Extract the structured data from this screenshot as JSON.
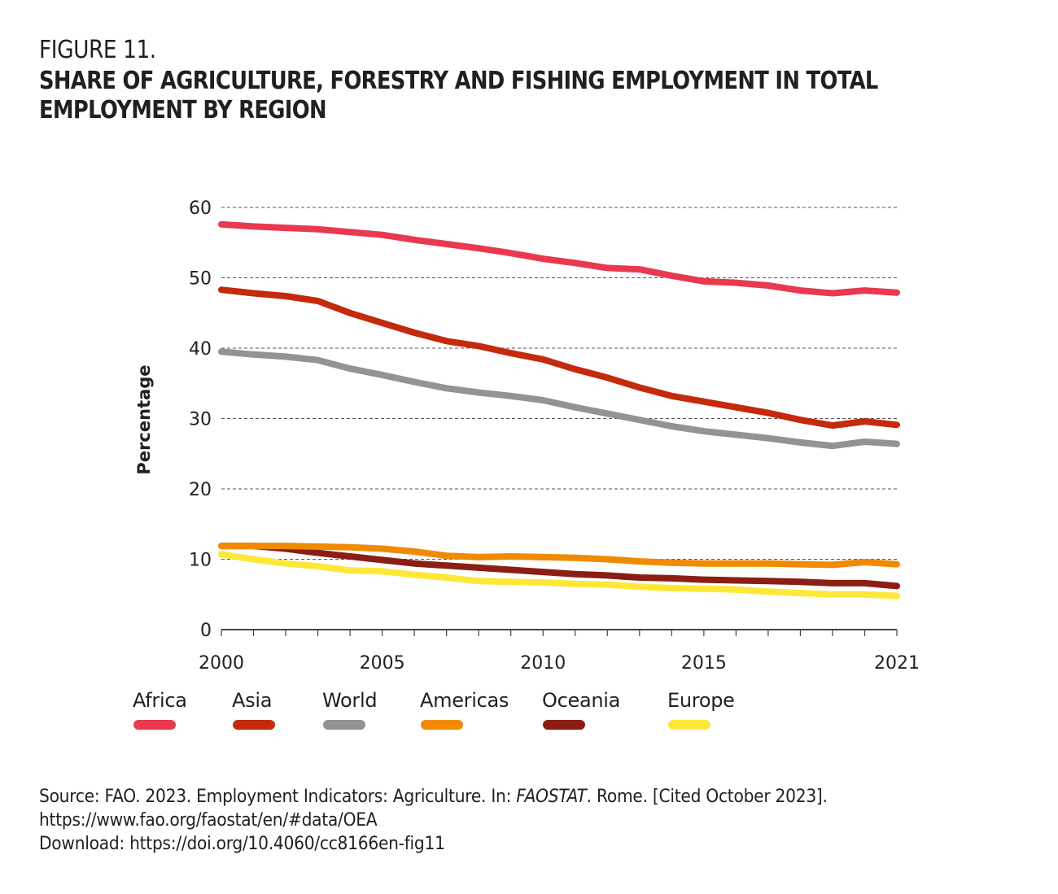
{
  "figure": {
    "label": "FIGURE 11.",
    "title": "SHARE OF AGRICULTURE, FORESTRY AND FISHING EMPLOYMENT IN TOTAL EMPLOYMENT BY REGION"
  },
  "source": {
    "prefix": "Source: FAO. 2023. Employment Indicators: Agriculture. In: ",
    "publication": "FAOSTAT",
    "suffix": ". Rome. [Cited October 2023].",
    "url": "https://www.fao.org/faostat/en/#data/OEA",
    "download": "Download: https://doi.org/10.4060/cc8166en-fig11"
  },
  "chart_data": {
    "type": "line",
    "title": "Share of agriculture, forestry and fishing employment in total employment by region",
    "xlabel": "",
    "ylabel": "Percentage",
    "xlim": [
      2000,
      2021
    ],
    "ylim": [
      0,
      60
    ],
    "xticks": [
      2000,
      2005,
      2010,
      2015,
      2021
    ],
    "yticks": [
      0,
      10,
      20,
      30,
      40,
      50,
      60
    ],
    "grid": "horizontal dashed",
    "legend_position": "bottom",
    "x": [
      2000,
      2001,
      2002,
      2003,
      2004,
      2005,
      2006,
      2007,
      2008,
      2009,
      2010,
      2011,
      2012,
      2013,
      2014,
      2015,
      2016,
      2017,
      2018,
      2019,
      2020,
      2021
    ],
    "series": [
      {
        "name": "Africa",
        "color": "#e8394f",
        "values": [
          57.6,
          57.3,
          57.1,
          56.9,
          56.5,
          56.1,
          55.4,
          54.8,
          54.2,
          53.5,
          52.7,
          52.1,
          51.4,
          51.2,
          50.3,
          49.5,
          49.3,
          48.9,
          48.2,
          47.8,
          48.2,
          47.9
        ]
      },
      {
        "name": "Asia",
        "color": "#c42a0c",
        "values": [
          48.3,
          47.8,
          47.4,
          46.7,
          45.0,
          43.6,
          42.2,
          41.0,
          40.3,
          39.3,
          38.4,
          37.0,
          35.8,
          34.4,
          33.2,
          32.4,
          31.6,
          30.8,
          29.8,
          29.0,
          29.6,
          29.1
        ]
      },
      {
        "name": "World",
        "color": "#939393",
        "values": [
          39.5,
          39.1,
          38.8,
          38.3,
          37.1,
          36.2,
          35.2,
          34.3,
          33.7,
          33.2,
          32.6,
          31.6,
          30.7,
          29.8,
          28.9,
          28.2,
          27.7,
          27.2,
          26.6,
          26.1,
          26.7,
          26.4
        ]
      },
      {
        "name": "Americas",
        "color": "#f08a00",
        "values": [
          11.9,
          11.9,
          11.9,
          11.8,
          11.7,
          11.5,
          11.1,
          10.5,
          10.3,
          10.4,
          10.3,
          10.2,
          10.0,
          9.7,
          9.5,
          9.4,
          9.4,
          9.4,
          9.3,
          9.2,
          9.6,
          9.3
        ]
      },
      {
        "name": "Oceania",
        "color": "#8b1e14",
        "values": [
          11.9,
          11.9,
          11.5,
          10.9,
          10.4,
          9.9,
          9.4,
          9.1,
          8.8,
          8.5,
          8.2,
          7.9,
          7.7,
          7.4,
          7.3,
          7.1,
          7.0,
          6.9,
          6.8,
          6.6,
          6.6,
          6.2
        ]
      },
      {
        "name": "Europe",
        "color": "#fde83a",
        "values": [
          10.7,
          10.0,
          9.4,
          9.0,
          8.4,
          8.3,
          7.8,
          7.4,
          6.9,
          6.8,
          6.7,
          6.5,
          6.4,
          6.1,
          5.9,
          5.8,
          5.7,
          5.4,
          5.2,
          5.0,
          5.0,
          4.8
        ]
      }
    ]
  }
}
